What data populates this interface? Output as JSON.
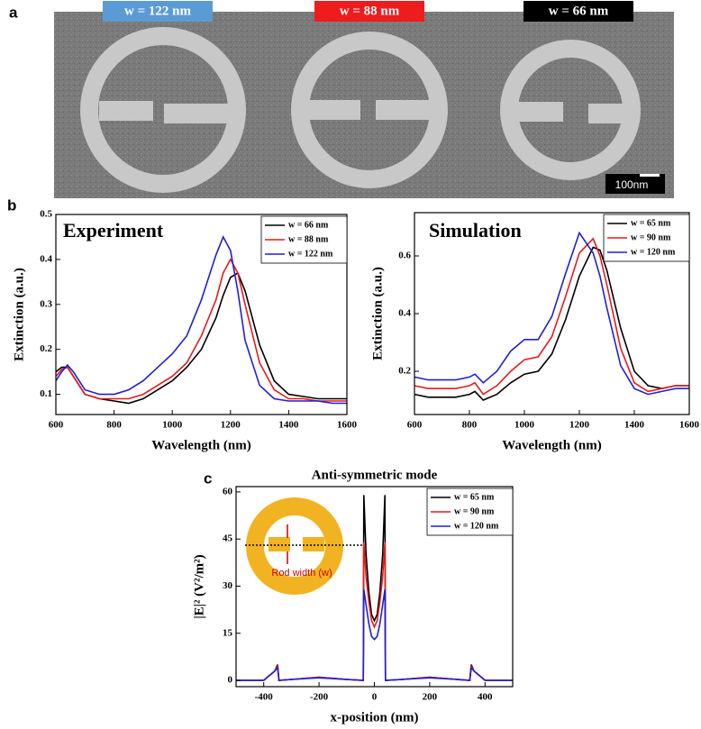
{
  "panel_labels": [
    "a",
    "b",
    "c"
  ],
  "sem_image": {
    "labels": [
      {
        "text": "w = 122 nm",
        "color": "#5b9bd5"
      },
      {
        "text": "w = 88 nm",
        "color": "#ee1c1c"
      },
      {
        "text": "w = 66 nm",
        "color": "#000000"
      }
    ],
    "scale_bar": "100nm"
  },
  "inset_label": "Rod width (w)",
  "chart_data": [
    {
      "type": "line",
      "annotation": "Experiment",
      "x_label": "Wavelength (nm)",
      "y_label": "Extinction (a.u.)",
      "xlim": [
        600,
        1600
      ],
      "ylim": [
        0.055,
        0.5
      ],
      "xticks": [
        600,
        800,
        1000,
        1200,
        1400,
        1600
      ],
      "yticks": [
        0.1,
        0.2,
        0.3,
        0.4,
        0.5
      ],
      "legend": "upper right",
      "x": [
        600,
        620,
        640,
        660,
        680,
        700,
        750,
        800,
        850,
        900,
        950,
        1000,
        1050,
        1100,
        1150,
        1175,
        1200,
        1225,
        1250,
        1300,
        1350,
        1400,
        1450,
        1500,
        1550,
        1600
      ],
      "series": [
        {
          "name": "w = 66 nm",
          "color": "#000000",
          "values": [
            0.15,
            0.16,
            0.16,
            0.14,
            0.12,
            0.1,
            0.09,
            0.085,
            0.08,
            0.09,
            0.11,
            0.13,
            0.16,
            0.2,
            0.27,
            0.32,
            0.36,
            0.37,
            0.33,
            0.21,
            0.13,
            0.1,
            0.095,
            0.09,
            0.09,
            0.09
          ]
        },
        {
          "name": "w = 88 nm",
          "color": "#e8191c",
          "values": [
            0.14,
            0.155,
            0.16,
            0.14,
            0.12,
            0.1,
            0.09,
            0.09,
            0.09,
            0.1,
            0.12,
            0.14,
            0.17,
            0.23,
            0.31,
            0.37,
            0.4,
            0.37,
            0.3,
            0.17,
            0.11,
            0.09,
            0.09,
            0.085,
            0.085,
            0.085
          ]
        },
        {
          "name": "w = 122 nm",
          "color": "#1f1fd6",
          "values": [
            0.13,
            0.15,
            0.165,
            0.15,
            0.13,
            0.11,
            0.1,
            0.1,
            0.11,
            0.13,
            0.16,
            0.19,
            0.23,
            0.31,
            0.41,
            0.45,
            0.42,
            0.33,
            0.22,
            0.12,
            0.09,
            0.085,
            0.085,
            0.085,
            0.08,
            0.08
          ]
        }
      ]
    },
    {
      "type": "line",
      "annotation": "Simulation",
      "x_label": "Wavelength (nm)",
      "y_label": "Extinction (a.u.)",
      "xlim": [
        600,
        1600
      ],
      "ylim": [
        0.05,
        0.75
      ],
      "xticks": [
        600,
        800,
        1000,
        1200,
        1400,
        1600
      ],
      "yticks": [
        0.2,
        0.4,
        0.6
      ],
      "legend": "upper right",
      "x": [
        600,
        650,
        700,
        750,
        800,
        820,
        850,
        900,
        950,
        1000,
        1050,
        1100,
        1150,
        1200,
        1250,
        1275,
        1300,
        1350,
        1400,
        1450,
        1500,
        1550,
        1600
      ],
      "series": [
        {
          "name": "w = 65 nm",
          "color": "#000000",
          "values": [
            0.12,
            0.11,
            0.11,
            0.11,
            0.12,
            0.13,
            0.1,
            0.12,
            0.16,
            0.19,
            0.2,
            0.26,
            0.38,
            0.53,
            0.63,
            0.62,
            0.55,
            0.35,
            0.2,
            0.15,
            0.14,
            0.15,
            0.15
          ]
        },
        {
          "name": "w = 90 nm",
          "color": "#e8191c",
          "values": [
            0.15,
            0.14,
            0.14,
            0.14,
            0.15,
            0.16,
            0.12,
            0.15,
            0.2,
            0.24,
            0.25,
            0.32,
            0.46,
            0.61,
            0.66,
            0.6,
            0.5,
            0.28,
            0.16,
            0.13,
            0.14,
            0.15,
            0.15
          ]
        },
        {
          "name": "w = 120 nm",
          "color": "#1f1fd6",
          "values": [
            0.18,
            0.17,
            0.17,
            0.17,
            0.18,
            0.19,
            0.16,
            0.2,
            0.27,
            0.31,
            0.31,
            0.39,
            0.54,
            0.68,
            0.61,
            0.53,
            0.42,
            0.22,
            0.14,
            0.12,
            0.13,
            0.14,
            0.14
          ]
        }
      ]
    },
    {
      "type": "line",
      "title": "Anti-symmetric mode",
      "x_label": "x-position (nm)",
      "y_label": "|E|² (V²/m²)",
      "xlim": [
        -500,
        500
      ],
      "ylim": [
        -2,
        61.7
      ],
      "xticks": [
        -400,
        -200,
        0,
        200,
        400
      ],
      "yticks": [
        0,
        15,
        30,
        45,
        60
      ],
      "legend": "upper right",
      "x": [
        -500,
        -400,
        -360,
        -350,
        -345,
        -300,
        -200,
        -100,
        -40,
        -38,
        -30,
        -20,
        -10,
        0,
        10,
        20,
        30,
        38,
        40,
        100,
        200,
        300,
        345,
        350,
        360,
        400,
        500
      ],
      "series": [
        {
          "name": "w = 65 nm",
          "color": "#000000",
          "values": [
            0,
            0,
            3,
            5,
            0,
            0.3,
            1,
            0.3,
            0,
            59,
            40,
            28,
            21,
            19,
            21,
            28,
            40,
            59,
            0,
            0.3,
            1,
            0.3,
            0,
            5,
            3,
            0,
            0
          ]
        },
        {
          "name": "w = 90 nm",
          "color": "#e8191c",
          "values": [
            0,
            0,
            3,
            4.5,
            0,
            0.3,
            1,
            0.3,
            0,
            44,
            33,
            25,
            19,
            17,
            19,
            25,
            33,
            44,
            0,
            0.3,
            1,
            0.3,
            0,
            4.5,
            3,
            0,
            0
          ]
        },
        {
          "name": "w = 120 nm",
          "color": "#1f1fd6",
          "values": [
            0,
            0,
            3,
            4,
            0,
            0.3,
            0.8,
            0.3,
            0,
            29,
            24,
            18,
            14,
            13,
            14,
            18,
            24,
            29,
            0,
            0.3,
            0.8,
            0.3,
            0,
            4,
            3,
            0,
            0
          ]
        }
      ]
    }
  ]
}
